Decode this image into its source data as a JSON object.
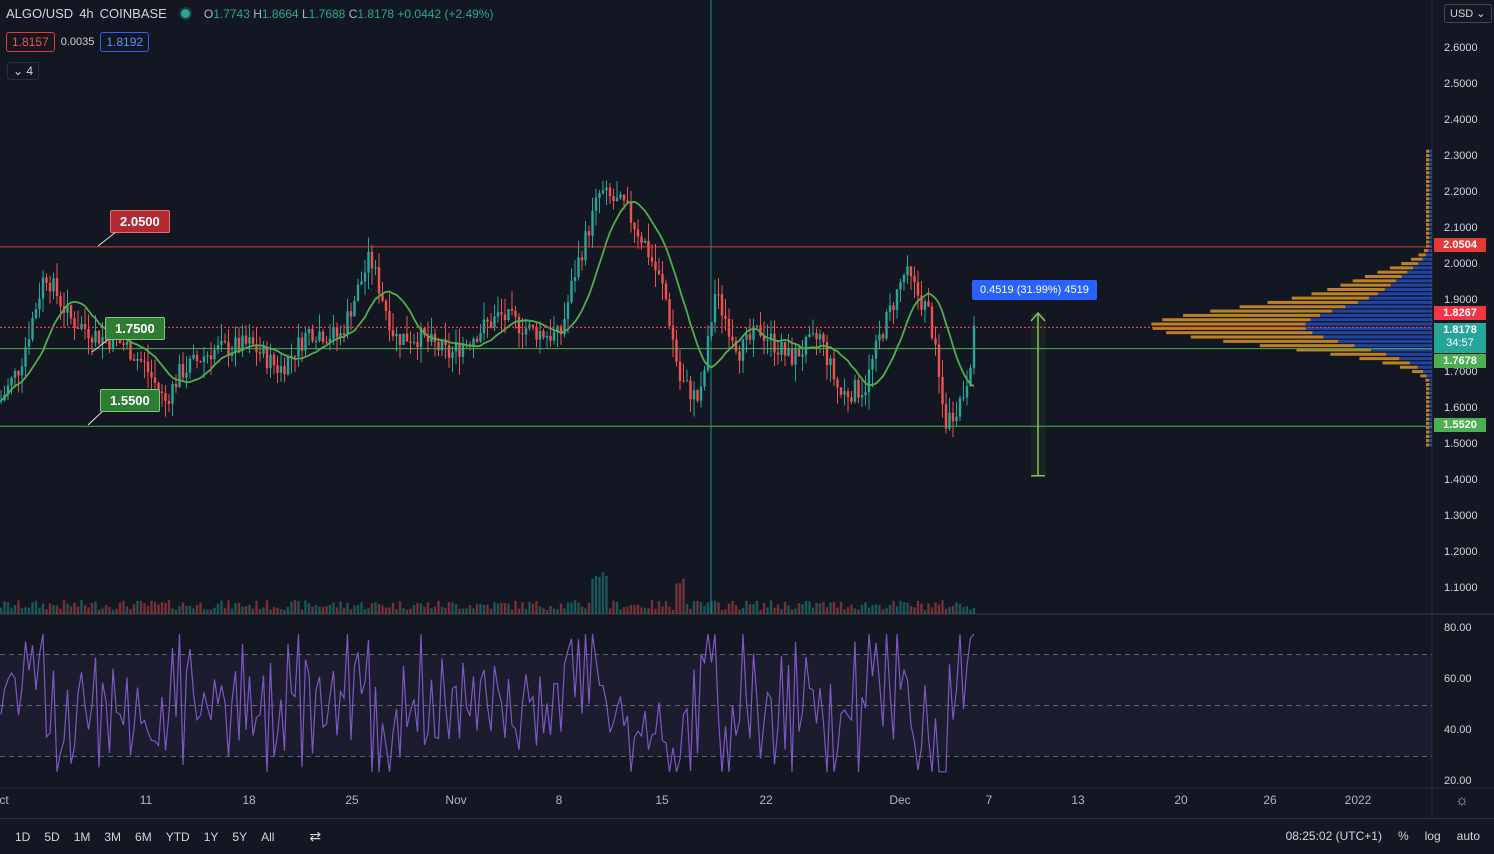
{
  "legend": {
    "symbol": "ALGO/USD",
    "interval": "4h",
    "exchange": "COINBASE",
    "open_label": "O",
    "open": "1.7743",
    "high_label": "H",
    "high": "1.8664",
    "low_label": "L",
    "low": "1.7688",
    "close_label": "C",
    "close": "1.8178",
    "change": "+0.0442 (+2.49%)"
  },
  "trade": {
    "sell_price": "1.8157",
    "spread": "0.0035",
    "buy_price": "1.8192"
  },
  "indicators_toggle": "4",
  "currency": "USD",
  "price_axis": [
    "2.6000",
    "2.5000",
    "2.4000",
    "2.3000",
    "2.2000",
    "2.1000",
    "2.0000",
    "1.9000",
    "1.8000",
    "1.7000",
    "1.6000",
    "1.5000",
    "1.4000",
    "1.3000",
    "1.2000",
    "1.1000"
  ],
  "rsi_axis": [
    "80.00",
    "60.00",
    "40.00",
    "20.00"
  ],
  "price_tags": {
    "resistance": "2.0504",
    "current_line": "1.8267",
    "last_price": "1.8178",
    "countdown": "34:57",
    "mid_support": "1.7678",
    "low_support": "1.5520"
  },
  "colors": {
    "resistance": "#e53935",
    "current_line": "#f23645",
    "last_price": "#26a69a",
    "support": "#4caf50",
    "rsi": "#7e57c2",
    "ma": "#4caf50",
    "measure": "#2962ff",
    "profile_up": "#f6a623",
    "profile_down": "#2962ff"
  },
  "callouts": {
    "resistance": "2.0500",
    "mid": "1.7500",
    "support": "1.5500"
  },
  "measure_label": "0.4519 (31.99%) 4519",
  "x_axis": [
    "ct",
    "11",
    "18",
    "25",
    "Nov",
    "8",
    "15",
    "22",
    "Dec",
    "7",
    "13",
    "20",
    "26",
    "2022"
  ],
  "time_ranges": [
    "1D",
    "5D",
    "1M",
    "3M",
    "6M",
    "YTD",
    "1Y",
    "5Y",
    "All"
  ],
  "clock": "08:25:02 (UTC+1)",
  "axis_options": [
    "%",
    "log",
    "auto"
  ]
}
